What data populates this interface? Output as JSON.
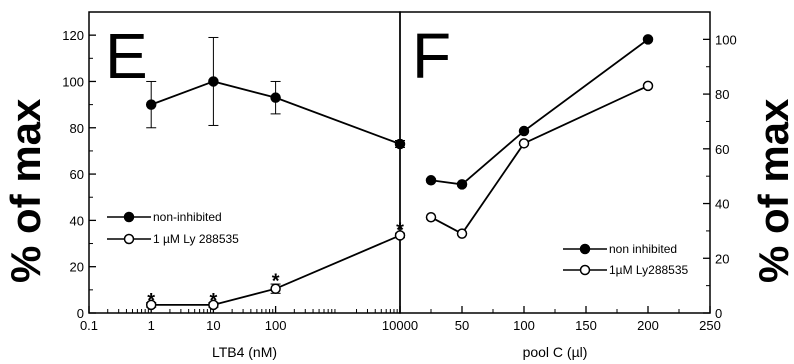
{
  "y_axis_label": "% of max",
  "chart_data": [
    {
      "type": "line",
      "panel_label": "E",
      "xlabel": "LTB4 (nM)",
      "ylabel": "% of max",
      "xscale": "log",
      "xlim": [
        0.1,
        10000
      ],
      "ylim": [
        0,
        130
      ],
      "xticks": [
        "0.1",
        "1",
        "10",
        "100",
        "10000"
      ],
      "yticks": [
        "0",
        "20",
        "40",
        "60",
        "80",
        "100",
        "120"
      ],
      "legend_position": "middle-left",
      "series": [
        {
          "name": "non-inhibited",
          "marker": "filled-circle",
          "x": [
            1,
            10,
            100,
            10000
          ],
          "y": [
            90,
            100,
            93,
            73
          ],
          "err": [
            10,
            19,
            7,
            1.5
          ]
        },
        {
          "name": "1 µM Ly 288535",
          "marker": "open-circle",
          "x": [
            1,
            10,
            100,
            10000
          ],
          "y": [
            3.5,
            3.5,
            10.5,
            33.5
          ],
          "err": [
            1,
            1,
            2,
            1
          ]
        }
      ],
      "annotations": [
        {
          "text": "*",
          "x": 1,
          "y": 6
        },
        {
          "text": "*",
          "x": 10,
          "y": 6
        },
        {
          "text": "*",
          "x": 100,
          "y": 14.5
        },
        {
          "text": "*",
          "x": 10000,
          "y": 36.5
        }
      ]
    },
    {
      "type": "line",
      "panel_label": "F",
      "xlabel": "pool C (µl)",
      "ylabel": "% of max",
      "xlim": [
        0,
        250
      ],
      "ylim": [
        0,
        110
      ],
      "xticks": [
        "0",
        "50",
        "100",
        "150",
        "200",
        "250"
      ],
      "yticks": [
        "0",
        "20",
        "40",
        "60",
        "80",
        "100"
      ],
      "y_axis_side": "right",
      "legend_position": "bottom-right",
      "series": [
        {
          "name": "non inhibited",
          "marker": "filled-circle",
          "x": [
            25,
            50,
            100,
            200
          ],
          "y": [
            48.5,
            47,
            66.5,
            100
          ]
        },
        {
          "name": "1µM Ly288535",
          "marker": "open-circle",
          "x": [
            25,
            50,
            100,
            200
          ],
          "y": [
            35,
            29,
            62,
            83
          ]
        }
      ]
    }
  ]
}
